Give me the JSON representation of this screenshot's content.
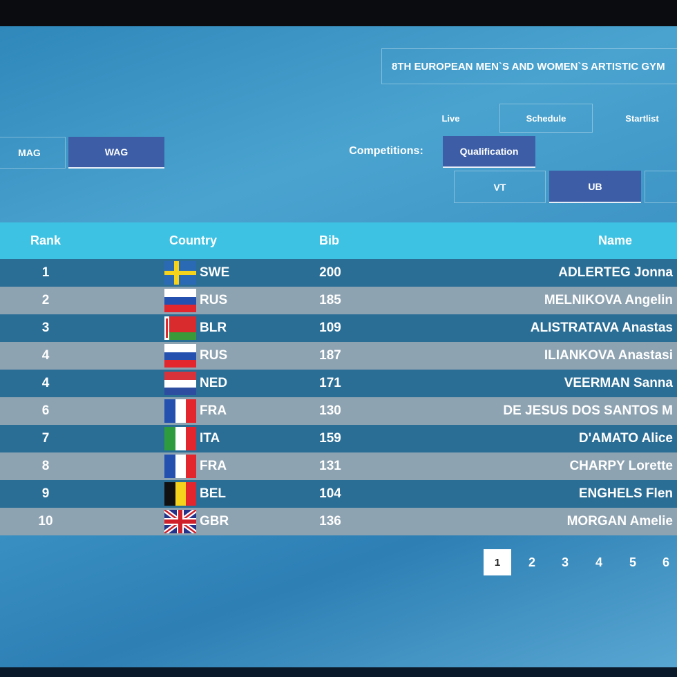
{
  "header": {
    "title": "8TH EUROPEAN MEN`S AND WOMEN`S ARTISTIC GYM"
  },
  "nav": [
    "Live",
    "Schedule",
    "Startlist"
  ],
  "disciplines": [
    "MAG",
    "WAG"
  ],
  "competitions_label": "Competitions:",
  "competition": "Qualification",
  "apparatus": [
    "VT",
    "UB"
  ],
  "table": {
    "columns": [
      "Rank",
      "Country",
      "Bib",
      "Name"
    ],
    "rows": [
      [
        1,
        "SWE",
        200,
        "ADLERTEG Jonna"
      ],
      [
        2,
        "RUS",
        185,
        "MELNIKOVA Angelin"
      ],
      [
        3,
        "BLR",
        109,
        "ALISTRATAVA Anastas"
      ],
      [
        4,
        "RUS",
        187,
        "ILIANKOVA Anastasi"
      ],
      [
        4,
        "NED",
        171,
        "VEERMAN Sanna"
      ],
      [
        6,
        "FRA",
        130,
        "DE JESUS DOS SANTOS M"
      ],
      [
        7,
        "ITA",
        159,
        "D'AMATO Alice"
      ],
      [
        8,
        "FRA",
        131,
        "CHARPY Lorette"
      ],
      [
        9,
        "BEL",
        104,
        "ENGHELS Flen"
      ],
      [
        10,
        "GBR",
        136,
        "MORGAN Amelie"
      ]
    ]
  },
  "pagination": [
    1,
    2,
    3,
    4,
    5,
    6
  ]
}
